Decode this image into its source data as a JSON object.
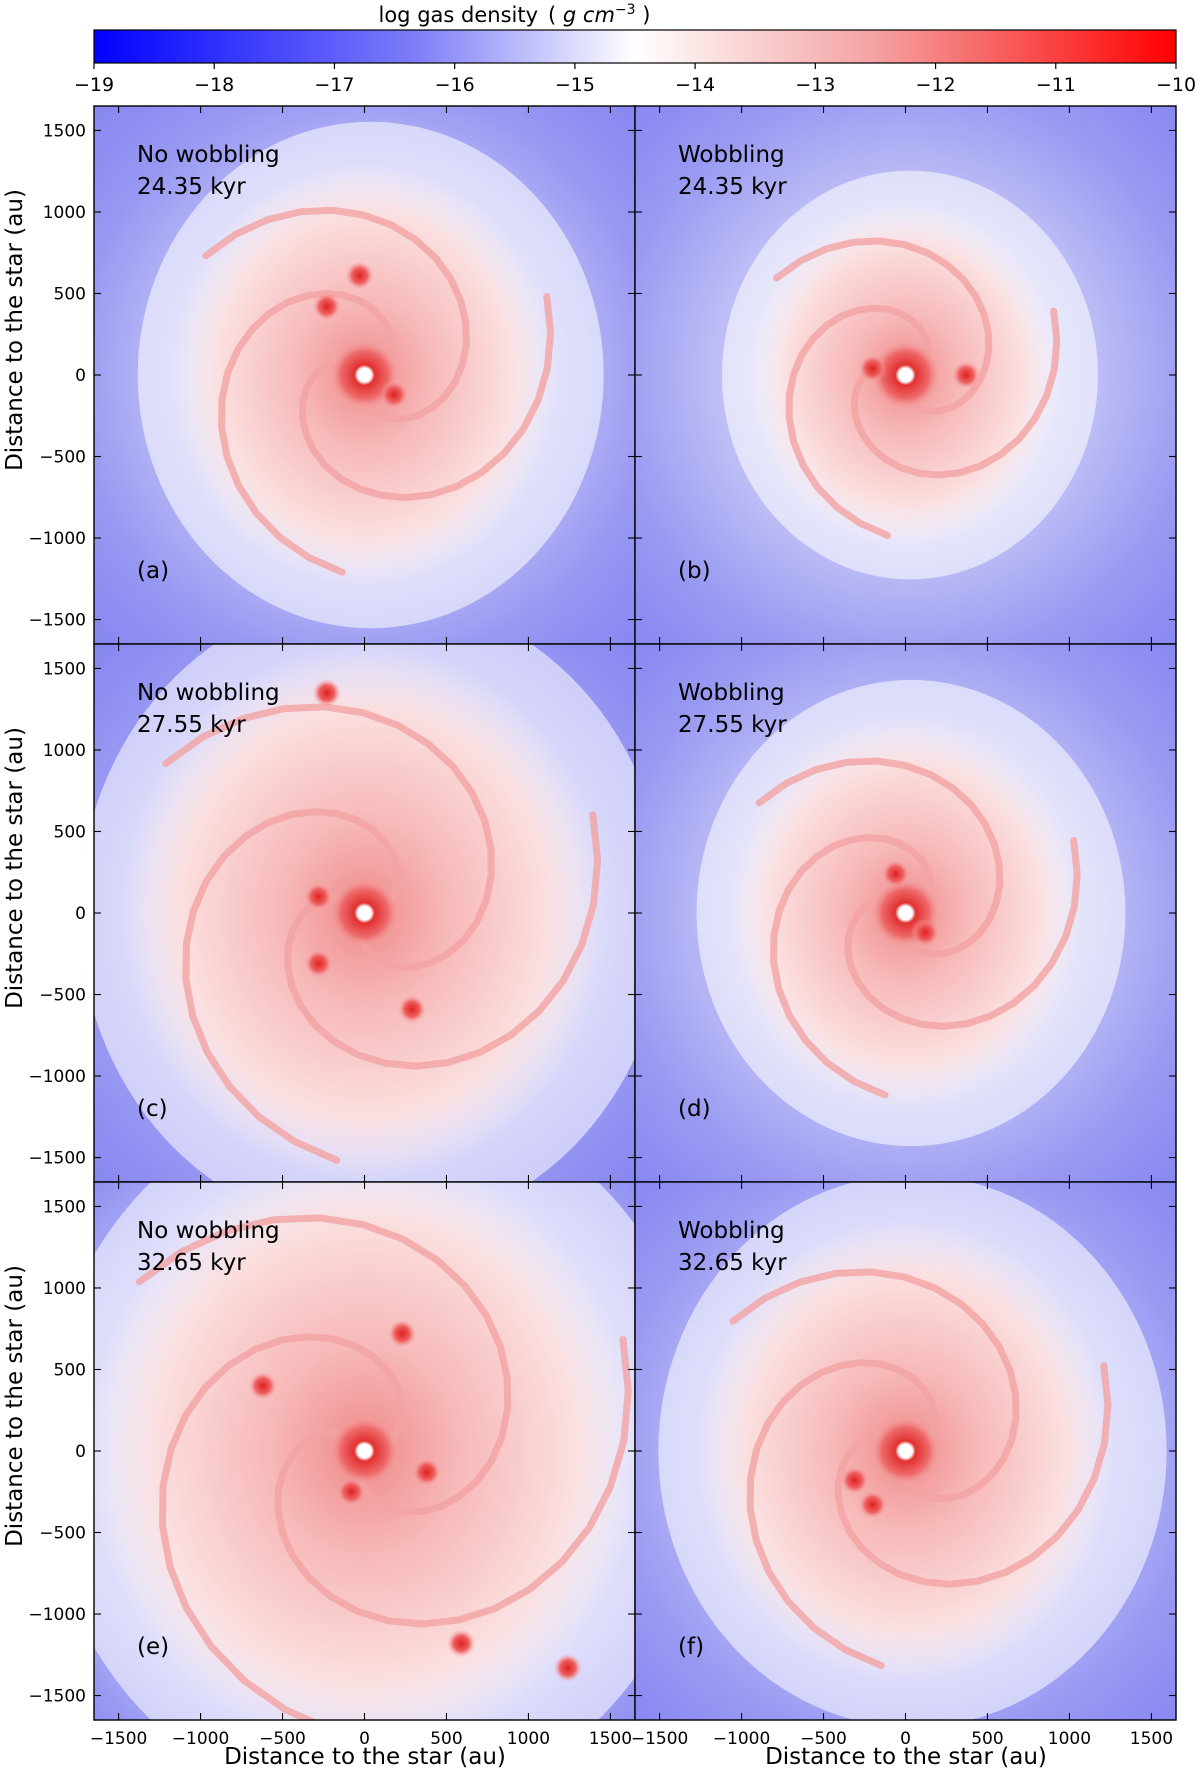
{
  "colorbar": {
    "title": "log gas density",
    "unit_prefix": "( ",
    "unit_g": "g",
    "unit_cm": " cm",
    "unit_exp": "−3",
    "unit_suffix": " )",
    "min": -19,
    "max": -10,
    "ticks": [
      "−19",
      "−18",
      "−17",
      "−16",
      "−15",
      "−14",
      "−13",
      "−12",
      "−11",
      "−10"
    ],
    "colors": {
      "low": "#0000ff",
      "mid": "#ffffff",
      "high": "#ff0000"
    }
  },
  "axes": {
    "xlabel": "Distance to the star (au)",
    "ylabel": "Distance to the star (au)",
    "xticks": [
      "−1500",
      "−1000",
      "−500",
      "0",
      "500",
      "1000",
      "1500"
    ],
    "yticks": [
      "1500",
      "1000",
      "500",
      "0",
      "−500",
      "−1000",
      "−1500"
    ],
    "range": [
      -1650,
      1650
    ],
    "tick_values": [
      -1500,
      -1000,
      -500,
      0,
      500,
      1000,
      1500
    ]
  },
  "chart_data": {
    "type": "heatmap",
    "quantity": "log gas density",
    "unit": "g cm^-3",
    "value_range": [
      -19,
      -10
    ],
    "xlabel": "Distance to the star (au)",
    "ylabel": "Distance to the star (au)",
    "xlim": [
      -1650,
      1650
    ],
    "ylim": [
      -1650,
      1650
    ],
    "panels": [
      {
        "id": "a",
        "label": "(a)",
        "title": "No wobbling",
        "time": "24.35 kyr",
        "row": 0,
        "col": 0,
        "spread": 0.62,
        "clumps": [
          {
            "x": 0,
            "y": 0,
            "log_rho": -11
          },
          {
            "x": -30,
            "y": 610,
            "log_rho": -12
          },
          {
            "x": -230,
            "y": 420,
            "log_rho": -12.3
          },
          {
            "x": 180,
            "y": -120,
            "log_rho": -11.8
          }
        ]
      },
      {
        "id": "b",
        "label": "(b)",
        "title": "Wobbling",
        "time": "24.35 kyr",
        "row": 0,
        "col": 1,
        "spread": 0.45,
        "clumps": [
          {
            "x": 0,
            "y": 0,
            "log_rho": -11
          },
          {
            "x": -200,
            "y": 40,
            "log_rho": -11.8
          },
          {
            "x": 370,
            "y": 0,
            "log_rho": -12.2
          }
        ]
      },
      {
        "id": "c",
        "label": "(c)",
        "title": "No wobbling",
        "time": "27.55 kyr",
        "row": 1,
        "col": 0,
        "spread": 0.85,
        "clumps": [
          {
            "x": 0,
            "y": 0,
            "log_rho": -11
          },
          {
            "x": -230,
            "y": 1350,
            "log_rho": -12.2
          },
          {
            "x": -280,
            "y": -310,
            "log_rho": -11.8
          },
          {
            "x": 290,
            "y": -590,
            "log_rho": -12
          },
          {
            "x": -280,
            "y": 100,
            "log_rho": -11.8
          }
        ]
      },
      {
        "id": "d",
        "label": "(d)",
        "title": "Wobbling",
        "time": "27.55 kyr",
        "row": 1,
        "col": 1,
        "spread": 0.55,
        "clumps": [
          {
            "x": 0,
            "y": 0,
            "log_rho": -11
          },
          {
            "x": -60,
            "y": 240,
            "log_rho": -11.8
          },
          {
            "x": 120,
            "y": -120,
            "log_rho": -11.9
          }
        ]
      },
      {
        "id": "e",
        "label": "(e)",
        "title": "No wobbling",
        "time": "32.65 kyr",
        "row": 2,
        "col": 0,
        "spread": 1.0,
        "clumps": [
          {
            "x": 0,
            "y": 0,
            "log_rho": -11
          },
          {
            "x": 230,
            "y": 720,
            "log_rho": -12
          },
          {
            "x": -620,
            "y": 400,
            "log_rho": -12.2
          },
          {
            "x": 380,
            "y": -130,
            "log_rho": -11.8
          },
          {
            "x": -80,
            "y": -250,
            "log_rho": -11.8
          },
          {
            "x": 590,
            "y": -1180,
            "log_rho": -12
          },
          {
            "x": 1240,
            "y": -1330,
            "log_rho": -12.3
          }
        ]
      },
      {
        "id": "f",
        "label": "(f)",
        "title": "Wobbling",
        "time": "32.65 kyr",
        "row": 2,
        "col": 1,
        "spread": 0.7,
        "clumps": [
          {
            "x": 0,
            "y": 0,
            "log_rho": -11
          },
          {
            "x": -310,
            "y": -180,
            "log_rho": -11.8
          },
          {
            "x": -200,
            "y": -330,
            "log_rho": -11.8
          }
        ]
      }
    ]
  }
}
